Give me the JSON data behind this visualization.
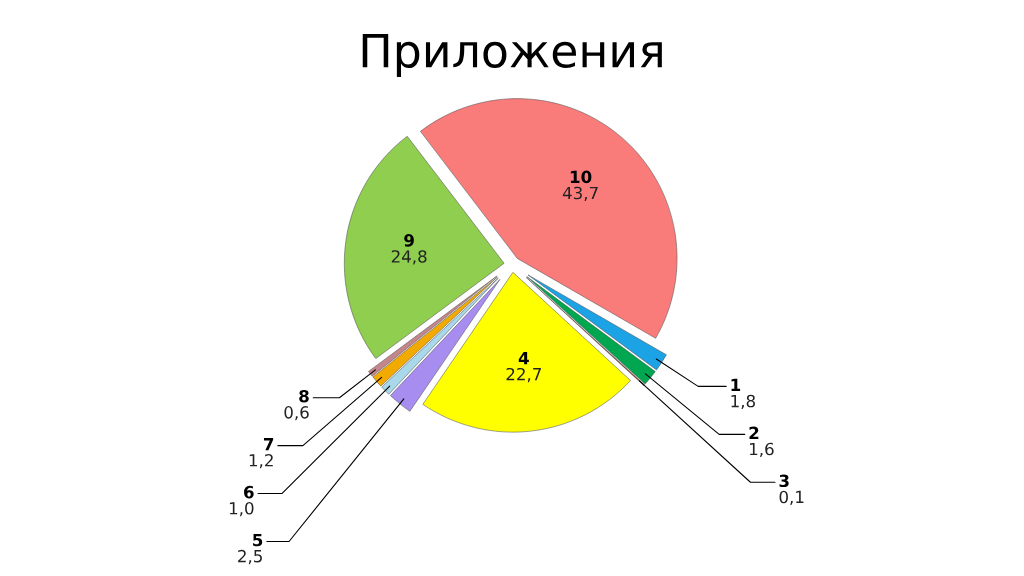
{
  "chart_data": {
    "type": "pie",
    "title": "Приложения",
    "categories": [
      "1",
      "2",
      "3",
      "4",
      "5",
      "6",
      "7",
      "8",
      "9",
      "10"
    ],
    "values": [
      1.8,
      1.6,
      0.1,
      22.7,
      2.5,
      1.0,
      1.2,
      0.6,
      24.8,
      43.7
    ],
    "colors": [
      "#1ba3e6",
      "#00a650",
      "#8a3412",
      "#ffff00",
      "#a88df0",
      "#a8d8ea",
      "#f2a900",
      "#c4868a",
      "#8fce4e",
      "#f97b7a"
    ],
    "value_labels": [
      "1,8",
      "1,6",
      "0,1",
      "22,7",
      "2,5",
      "1,0",
      "1,2",
      "0,6",
      "24,8",
      "43,7"
    ]
  }
}
